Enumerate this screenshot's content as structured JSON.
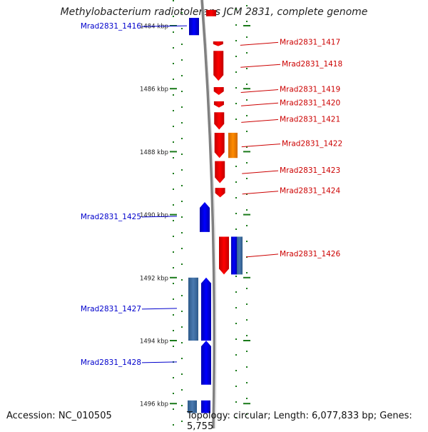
{
  "title": "Methylobacterium radiotolerans JCM 2831, complete genome",
  "footer": {
    "accession": "Accession: NC_010505",
    "topology": "Topology: circular; Length: 6,077,833 bp; Genes: 5,755"
  },
  "colors": {
    "forward_gene": "#ff0000",
    "reverse_gene": "#0000ff",
    "orange_feature": "#ff8c00",
    "steel_feature": "#4a7ab0",
    "tick": "#1a7a1a",
    "backbone": "#808080",
    "label_forward": "#cc0000",
    "label_reverse": "#0000cc"
  },
  "axis": {
    "ticks": [
      {
        "pos_kbp": 1484,
        "label": "1484 kbp"
      },
      {
        "pos_kbp": 1486,
        "label": "1486 kbp"
      },
      {
        "pos_kbp": 1488,
        "label": "1488 kbp"
      },
      {
        "pos_kbp": 1490,
        "label": "1490 kbp"
      },
      {
        "pos_kbp": 1492,
        "label": "1492 kbp"
      },
      {
        "pos_kbp": 1494,
        "label": "1494 kbp"
      },
      {
        "pos_kbp": 1496,
        "label": "1496 kbp"
      }
    ]
  },
  "genes": [
    {
      "id": "Mrad2831_1416",
      "strand": "reverse",
      "start_kbp": 1483.75,
      "end_kbp": 1484.3
    },
    {
      "id": "Mrad2831_1417",
      "strand": "forward",
      "start_kbp": 1484.5,
      "end_kbp": 1484.65
    },
    {
      "id": "Mrad2831_1418",
      "strand": "forward",
      "start_kbp": 1484.8,
      "end_kbp": 1485.75
    },
    {
      "id": "Mrad2831_1419",
      "strand": "forward",
      "start_kbp": 1485.95,
      "end_kbp": 1486.2
    },
    {
      "id": "Mrad2831_1420",
      "strand": "forward",
      "start_kbp": 1486.4,
      "end_kbp": 1486.6
    },
    {
      "id": "Mrad2831_1421",
      "strand": "forward",
      "start_kbp": 1486.75,
      "end_kbp": 1487.3
    },
    {
      "id": "Mrad2831_1422",
      "strand": "forward",
      "start_kbp": 1487.4,
      "end_kbp": 1488.2
    },
    {
      "id": "Mrad2831_1423",
      "strand": "forward",
      "start_kbp": 1488.3,
      "end_kbp": 1489.0
    },
    {
      "id": "Mrad2831_1424",
      "strand": "forward",
      "start_kbp": 1489.15,
      "end_kbp": 1489.45
    },
    {
      "id": "Mrad2831_1425",
      "strand": "reverse",
      "start_kbp": 1489.6,
      "end_kbp": 1490.55
    },
    {
      "id": "Mrad2831_1426",
      "strand": "forward",
      "start_kbp": 1490.7,
      "end_kbp": 1491.9
    },
    {
      "id": "Mrad2831_1427",
      "strand": "reverse",
      "start_kbp": 1492.0,
      "end_kbp": 1494.0
    },
    {
      "id": "Mrad2831_1428",
      "strand": "reverse",
      "start_kbp": 1494.0,
      "end_kbp": 1495.4
    }
  ],
  "features": [
    {
      "kind": "orange",
      "start_kbp": 1487.4,
      "end_kbp": 1488.2
    },
    {
      "kind": "steel",
      "start_kbp": 1490.7,
      "end_kbp": 1491.9
    },
    {
      "kind": "blue-rect",
      "start_kbp": 1490.7,
      "end_kbp": 1491.9
    },
    {
      "kind": "steel",
      "start_kbp": 1492.0,
      "end_kbp": 1494.0
    },
    {
      "kind": "steel",
      "start_kbp": 1495.9,
      "end_kbp": 1496.3
    }
  ],
  "continuations": [
    {
      "strand": "forward",
      "start_kbp": 1483.5,
      "end_kbp": 1483.7
    },
    {
      "strand": "reverse",
      "start_kbp": 1495.9,
      "end_kbp": 1496.3
    }
  ]
}
